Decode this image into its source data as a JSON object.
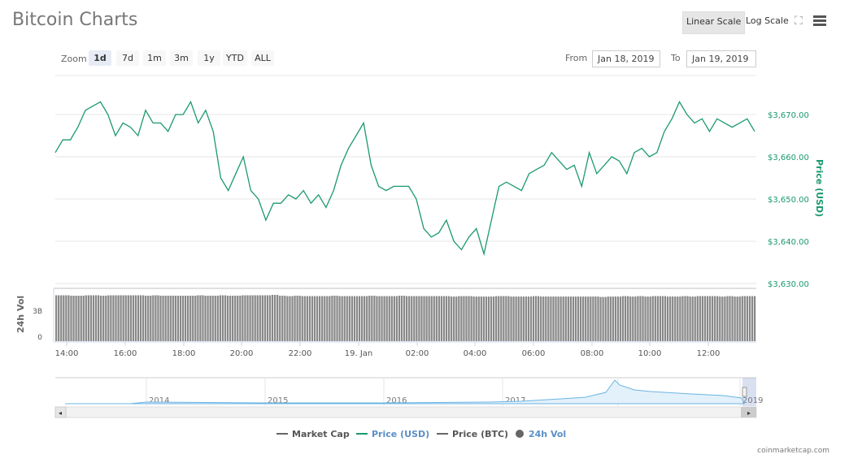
{
  "title": "Bitcoin Charts",
  "toolbar": {
    "linear": "Linear Scale",
    "log": "Log Scale"
  },
  "zoom": {
    "label": "Zoom",
    "buttons": [
      "1d",
      "7d",
      "1m",
      "3m",
      "1y",
      "YTD",
      "ALL"
    ],
    "active": "1d"
  },
  "range": {
    "from_label": "From",
    "from": "Jan 18, 2019",
    "to_label": "To",
    "to": "Jan 19, 2019"
  },
  "colors": {
    "price": "#1a9a6c",
    "volume": "#888888",
    "nav": "#6cb4e4"
  },
  "chart_data": {
    "type": "line",
    "title": "Bitcoin Charts",
    "ylabel": "Price (USD)",
    "ylim": [
      3630,
      3670
    ],
    "yticks": [
      "$3,630.00",
      "$3,640.00",
      "$3,650.00",
      "$3,660.00",
      "$3,670.00"
    ],
    "xticks": [
      "14:00",
      "16:00",
      "18:00",
      "20:00",
      "22:00",
      "19. Jan",
      "02:00",
      "04:00",
      "06:00",
      "08:00",
      "10:00",
      "12:00"
    ],
    "start_hour": 13.6,
    "step_hours": 0.2778,
    "price": [
      3661,
      3664,
      3664,
      3667,
      3671,
      3672,
      3673,
      3670,
      3665,
      3668,
      3667,
      3665,
      3671,
      3668,
      3668,
      3666,
      3670,
      3670,
      3673,
      3668,
      3671,
      3666,
      3655,
      3652,
      3656,
      3660,
      3652,
      3650,
      3645,
      3649,
      3649,
      3651,
      3650,
      3652,
      3649,
      3651,
      3648,
      3652,
      3658,
      3662,
      3665,
      3668,
      3658,
      3653,
      3652,
      3653,
      3653,
      3653,
      3650,
      3643,
      3641,
      3642,
      3645,
      3640,
      3638,
      3641,
      3643,
      3637,
      3645,
      3653,
      3654,
      3653,
      3652,
      3656,
      3657,
      3658,
      3661,
      3659,
      3657,
      3658,
      3653,
      3661,
      3656,
      3658,
      3660,
      3659,
      3656,
      3661,
      3662,
      3660,
      3661,
      3666,
      3669,
      3673,
      3670,
      3668,
      3669,
      3666,
      3669,
      3668,
      3667,
      3668,
      3669,
      3666
    ],
    "volume": {
      "label": "24h Vol",
      "ticks": [
        "0",
        "3B"
      ],
      "ylim": [
        0,
        6
      ],
      "values": [
        4.9,
        4.9,
        4.85,
        4.85,
        4.9,
        4.9,
        4.85,
        4.9,
        4.9,
        4.9,
        4.9,
        4.9,
        4.85,
        4.9,
        4.85,
        4.85,
        4.85,
        4.85,
        4.85,
        4.9,
        4.85,
        4.85,
        4.9,
        4.85,
        4.85,
        4.9,
        4.9,
        4.9,
        4.9,
        4.95,
        4.85,
        4.8,
        4.85,
        4.8,
        4.8,
        4.8,
        4.8,
        4.85,
        4.8,
        4.8,
        4.8,
        4.8,
        4.85,
        4.8,
        4.8,
        4.8,
        4.85,
        4.8,
        4.8,
        4.8,
        4.8,
        4.8,
        4.8,
        4.75,
        4.8,
        4.8,
        4.75,
        4.75,
        4.75,
        4.8,
        4.8,
        4.75,
        4.75,
        4.75,
        4.8,
        4.75,
        4.75,
        4.75,
        4.75,
        4.75,
        4.75,
        4.75,
        4.75,
        4.7,
        4.75,
        4.75,
        4.8,
        4.75,
        4.8,
        4.75,
        4.8,
        4.8,
        4.75,
        4.75,
        4.8,
        4.75,
        4.8,
        4.8,
        4.8,
        4.75,
        4.8,
        4.75,
        4.8,
        4.8
      ]
    },
    "navigator": {
      "years": [
        "2014",
        "2015",
        "2016",
        "2017",
        "2018",
        "2019"
      ]
    },
    "legend": [
      "Market Cap",
      "Price (USD)",
      "Price (BTC)",
      "24h Vol"
    ]
  },
  "credit": "coinmarketcap.com"
}
